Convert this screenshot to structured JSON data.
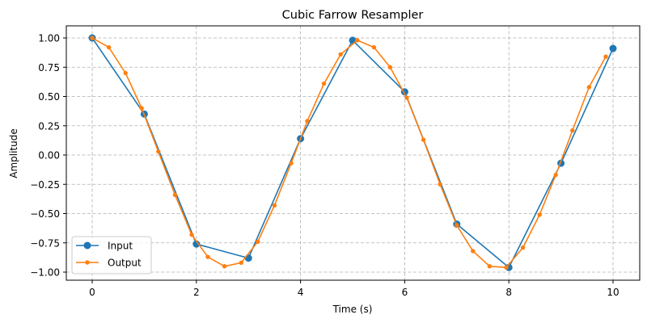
{
  "chart_data": {
    "type": "line",
    "title": "Cubic Farrow Resampler",
    "xlabel": "Time (s)",
    "ylabel": "Amplitude",
    "xlim": [
      -0.5,
      10.5
    ],
    "ylim": [
      -1.06,
      1.1
    ],
    "xticks": [
      0,
      2,
      4,
      6,
      8,
      10
    ],
    "xtick_labels": [
      "0",
      "2",
      "4",
      "6",
      "8",
      "10"
    ],
    "yticks": [
      1.0,
      0.75,
      0.5,
      0.25,
      0.0,
      -0.25,
      -0.5,
      -0.75,
      -1.0
    ],
    "ytick_labels": [
      "1.00",
      "0.75",
      "0.50",
      "0.25",
      "0.00",
      "−0.25",
      "−0.50",
      "−0.75",
      "−1.00"
    ],
    "grid": true,
    "grid_style": "dashed",
    "legend_position": "lower left",
    "series": [
      {
        "name": "Input",
        "color": "#1f77b4",
        "marker": "circle-large",
        "x": [
          0,
          1,
          2,
          3,
          4,
          5,
          6,
          7,
          8,
          9,
          10
        ],
        "y": [
          1.0,
          0.35,
          -0.76,
          -0.88,
          0.14,
          0.98,
          0.54,
          -0.59,
          -0.96,
          -0.07,
          0.91
        ]
      },
      {
        "name": "Output",
        "color": "#ff7f0e",
        "marker": "circle-small",
        "x": [
          0,
          0.32,
          0.64,
          0.95,
          1.27,
          1.59,
          1.91,
          2.22,
          2.54,
          2.86,
          3.18,
          3.5,
          3.82,
          4.13,
          4.45,
          4.77,
          5.09,
          5.41,
          5.72,
          6.04,
          6.36,
          6.68,
          7.0,
          7.31,
          7.63,
          7.95,
          8.27,
          8.59,
          8.9,
          9.22,
          9.54,
          9.86
        ],
        "y": [
          1.0,
          0.92,
          0.7,
          0.4,
          0.03,
          -0.34,
          -0.68,
          -0.87,
          -0.95,
          -0.92,
          -0.74,
          -0.43,
          -0.07,
          0.29,
          0.61,
          0.86,
          0.98,
          0.92,
          0.75,
          0.49,
          0.13,
          -0.25,
          -0.6,
          -0.82,
          -0.95,
          -0.96,
          -0.79,
          -0.51,
          -0.17,
          0.21,
          0.58,
          0.84
        ]
      }
    ]
  }
}
